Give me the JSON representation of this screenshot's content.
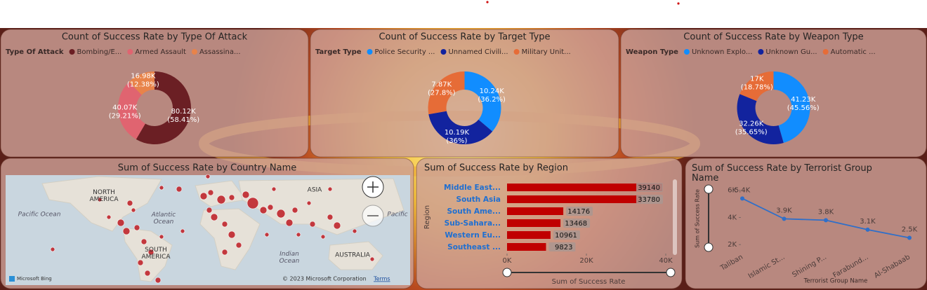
{
  "chart_data": [
    {
      "type": "donut",
      "title": "Count of Success Rate by Type Of Attack",
      "legend_title": "Type Of Attack",
      "categories": [
        "Bombing/E...",
        "Armed Assault",
        "Assassina..."
      ],
      "values": [
        80120,
        40070,
        16980
      ],
      "value_labels": [
        "80.12K",
        "40.07K",
        "16.98K"
      ],
      "percent_labels": [
        "(58.41%)",
        "(29.21%)",
        "(12.38%)"
      ],
      "colors": [
        "#6b1f24",
        "#e06470",
        "#e8834a"
      ]
    },
    {
      "type": "donut",
      "title": "Count of Success Rate by Target Type",
      "legend_title": "Target Type",
      "categories": [
        "Police Security ...",
        "Unnamed Civili...",
        "Military Unit..."
      ],
      "values": [
        10240,
        10190,
        7870
      ],
      "value_labels": [
        "10.24K",
        "10.19K",
        "7.87K"
      ],
      "percent_labels": [
        "(36.2%)",
        "(36%)",
        "(27.8%)"
      ],
      "colors": [
        "#118dff",
        "#12239e",
        "#e66c37"
      ]
    },
    {
      "type": "donut",
      "title": "Count of Success Rate by Weapon Type",
      "legend_title": "Weapon Type",
      "categories": [
        "Unknown Explo...",
        "Unknown Gu...",
        "Automatic ..."
      ],
      "values": [
        41230,
        32260,
        17000
      ],
      "value_labels": [
        "41.23K",
        "32.26K",
        "17K"
      ],
      "percent_labels": [
        "(45.56%)",
        "(35.65%)",
        "(18.78%)"
      ],
      "colors": [
        "#118dff",
        "#12239e",
        "#e66c37"
      ]
    },
    {
      "type": "map",
      "title": "Sum of Success Rate by Country Name",
      "labels": [
        "NORTH AMERICA",
        "SOUTH AMERICA",
        "ASIA",
        "AUSTRALIA",
        "Pacific Ocean",
        "Atlantic Ocean",
        "Indian Ocean",
        "Pacific"
      ],
      "attribution": [
        "Microsoft Bing",
        "© 2023 Microsoft Corporation",
        "Terms"
      ]
    },
    {
      "type": "hbar",
      "title": "Sum of Success Rate by Region",
      "x_label": "Sum of Success Rate",
      "y_label": "Region",
      "categories": [
        "Middle East...",
        "South Asia",
        "South Ame...",
        "Sub-Sahara...",
        "Western Eu...",
        "Southeast ..."
      ],
      "values": [
        39140,
        33780,
        14176,
        13468,
        10961,
        9823
      ],
      "color": "#c00000",
      "xlim": [
        0,
        40000
      ],
      "xticks": [
        {
          "value": 0,
          "label": "0K"
        },
        {
          "value": 20000,
          "label": "20K"
        },
        {
          "value": 40000,
          "label": "40K"
        }
      ]
    },
    {
      "type": "line",
      "title": "Sum of Success Rate by Terrorist Group Name",
      "x_label": "Terrorist Group Name",
      "y_label": "Sum of Success Rate",
      "categories": [
        "Taliban",
        "Islamic St...",
        "Shining P...",
        "Farabund...",
        "Al-Shabaab"
      ],
      "values": [
        5400,
        3900,
        3800,
        3100,
        2500
      ],
      "value_labels": [
        "5.4K",
        "3.9K",
        "3.8K",
        "3.1K",
        "2.5K"
      ],
      "color": "#2f6fc9",
      "ylim": [
        1700,
        6400
      ],
      "yticks": [
        {
          "value": 2000,
          "label": "2K"
        },
        {
          "value": 4000,
          "label": "4K"
        },
        {
          "value": 6000,
          "label": "6K"
        }
      ]
    }
  ]
}
